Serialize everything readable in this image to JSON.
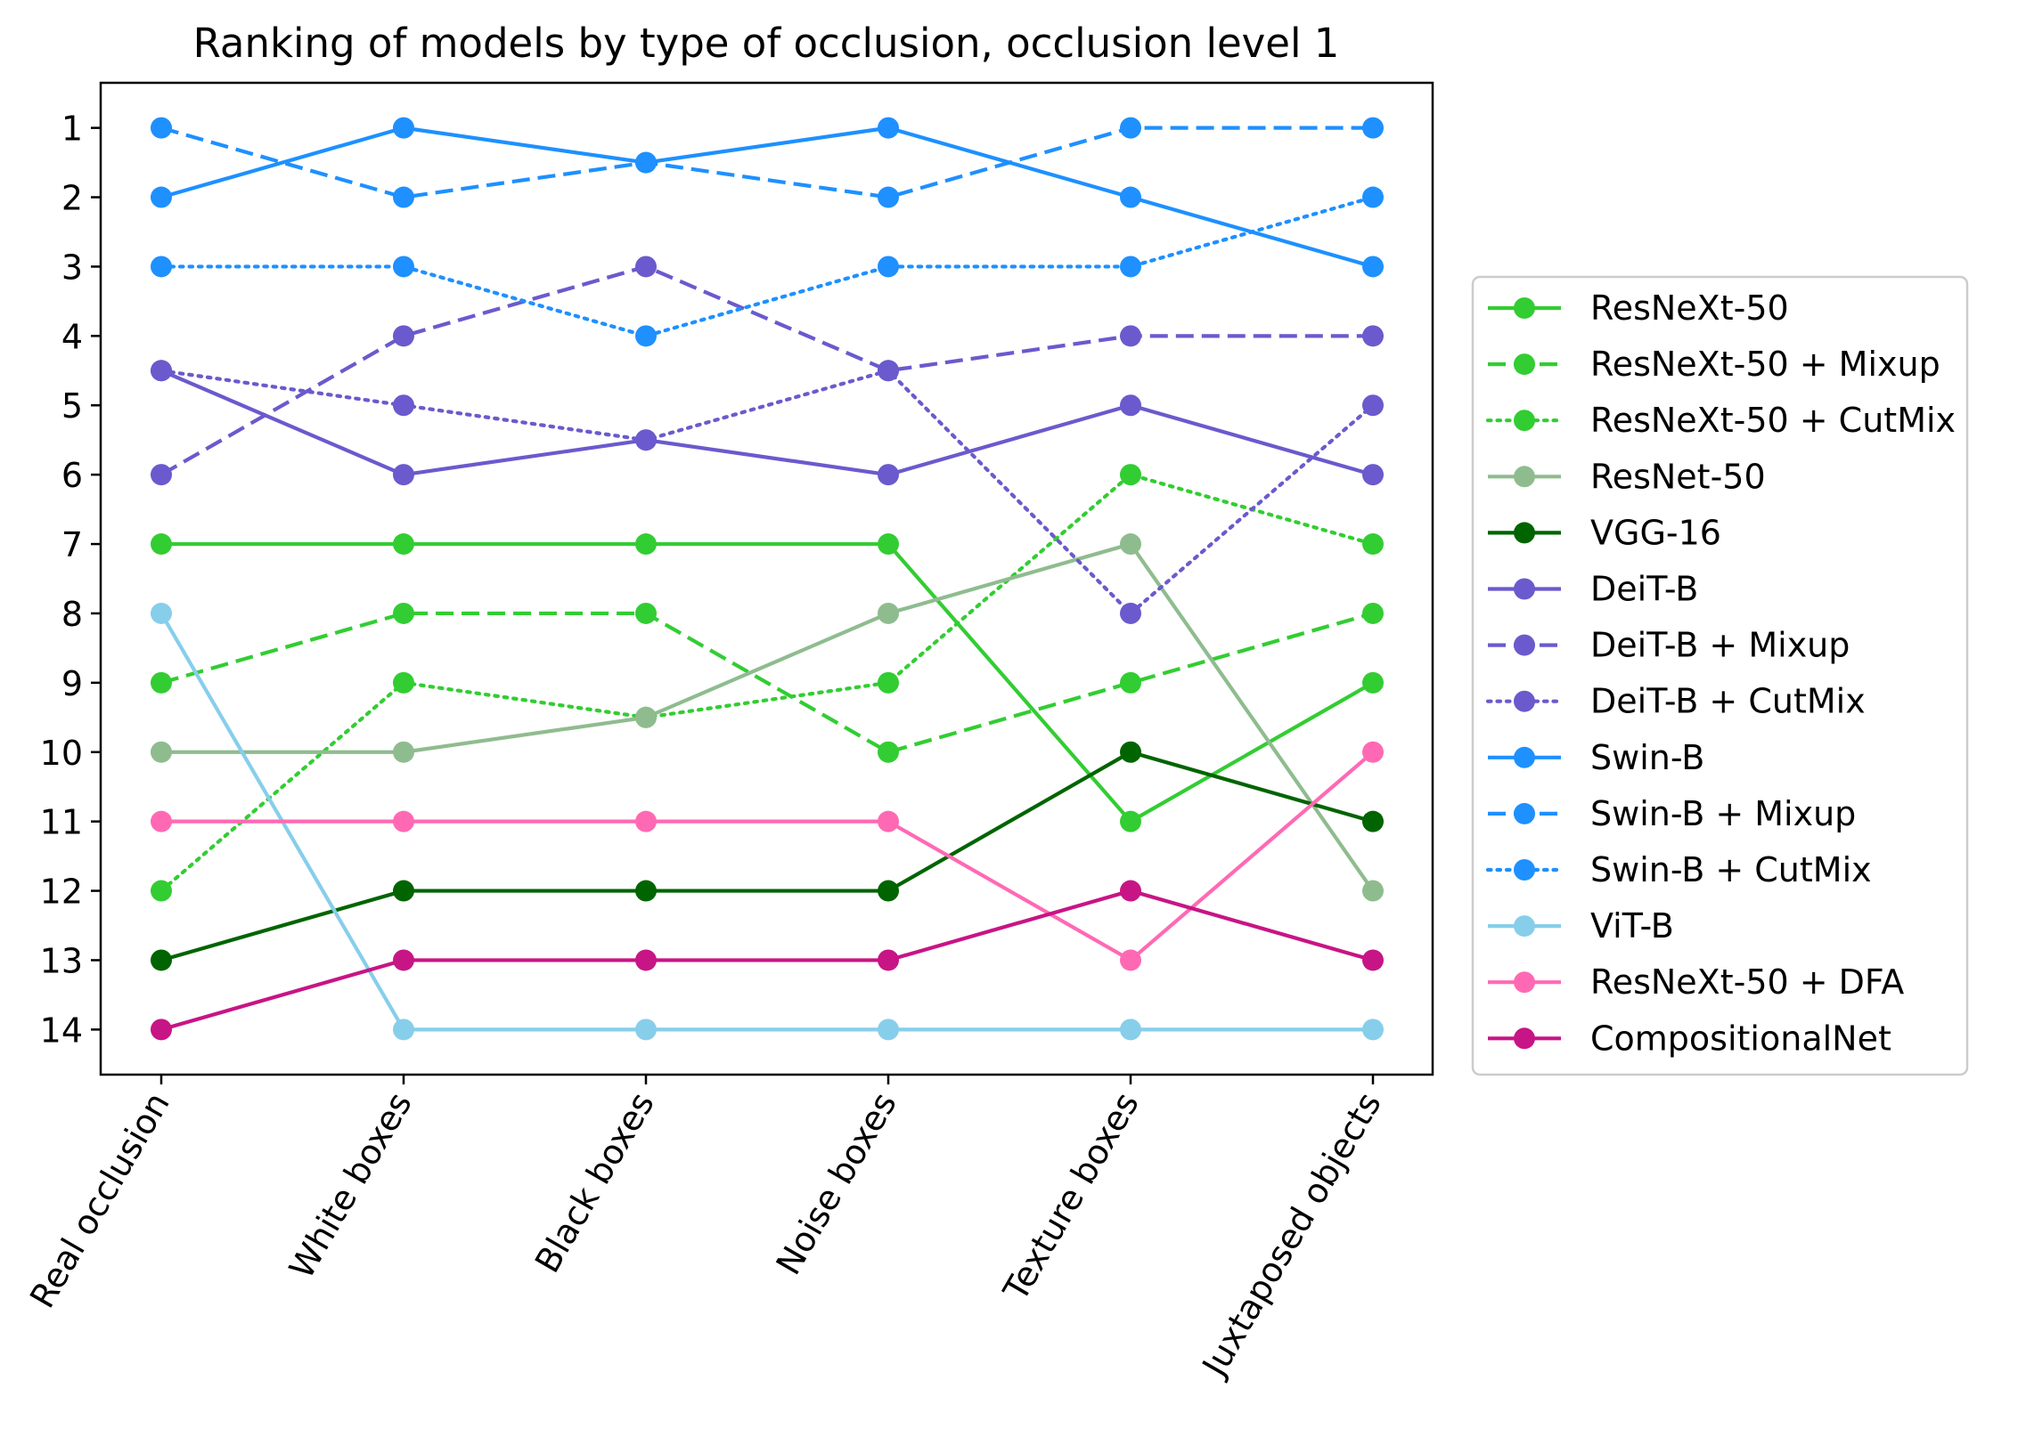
{
  "chart_data": {
    "type": "line",
    "title": "Ranking of models by type of occlusion, occlusion level 1",
    "xlabel": "",
    "ylabel": "",
    "categories": [
      "Real occlusion",
      "White boxes",
      "Black boxes",
      "Noise boxes",
      "Texture boxes",
      "Juxtaposed objects"
    ],
    "ylim": [
      14.65,
      0.35
    ],
    "yticks": [
      1,
      2,
      3,
      4,
      5,
      6,
      7,
      8,
      9,
      10,
      11,
      12,
      13,
      14
    ],
    "grid": false,
    "legend_position": "right",
    "series": [
      {
        "name": "ResNeXt-50",
        "color": "#32CD32",
        "style": "solid",
        "values": [
          7,
          7,
          7,
          7,
          11,
          9
        ]
      },
      {
        "name": "ResNeXt-50 + Mixup",
        "color": "#32CD32",
        "style": "dashed",
        "values": [
          9,
          8,
          8,
          10,
          9,
          8
        ]
      },
      {
        "name": "ResNeXt-50 + CutMix",
        "color": "#32CD32",
        "style": "dotted",
        "values": [
          12,
          9,
          9.5,
          9,
          6,
          7
        ]
      },
      {
        "name": "ResNet-50",
        "color": "#8FBC8F",
        "style": "solid",
        "values": [
          10,
          10,
          9.5,
          8,
          7,
          12
        ]
      },
      {
        "name": "VGG-16",
        "color": "#006400",
        "style": "solid",
        "values": [
          13,
          12,
          12,
          12,
          10,
          11
        ]
      },
      {
        "name": "DeiT-B",
        "color": "#6A5ACD",
        "style": "solid",
        "values": [
          4.5,
          6,
          5.5,
          6,
          5,
          6
        ]
      },
      {
        "name": "DeiT-B + Mixup",
        "color": "#6A5ACD",
        "style": "dashed",
        "values": [
          6,
          4,
          3,
          4.5,
          4,
          4
        ]
      },
      {
        "name": "DeiT-B + CutMix",
        "color": "#6A5ACD",
        "style": "dotted",
        "values": [
          4.5,
          5,
          5.5,
          4.5,
          8,
          5
        ]
      },
      {
        "name": "Swin-B",
        "color": "#1E90FF",
        "style": "solid",
        "values": [
          2,
          1,
          1.5,
          1,
          2,
          3
        ]
      },
      {
        "name": "Swin-B + Mixup",
        "color": "#1E90FF",
        "style": "dashed",
        "values": [
          1,
          2,
          1.5,
          2,
          1,
          1
        ]
      },
      {
        "name": "Swin-B + CutMix",
        "color": "#1E90FF",
        "style": "dotted",
        "values": [
          3,
          3,
          4,
          3,
          3,
          2
        ]
      },
      {
        "name": "ViT-B",
        "color": "#87CEEB",
        "style": "solid",
        "values": [
          8,
          14,
          14,
          14,
          14,
          14
        ]
      },
      {
        "name": "ResNeXt-50 + DFA",
        "color": "#FF69B4",
        "style": "solid",
        "values": [
          11,
          11,
          11,
          11,
          13,
          10
        ]
      },
      {
        "name": "CompositionalNet",
        "color": "#C71585",
        "style": "solid",
        "values": [
          14,
          13,
          13,
          13,
          12,
          13
        ]
      }
    ]
  }
}
